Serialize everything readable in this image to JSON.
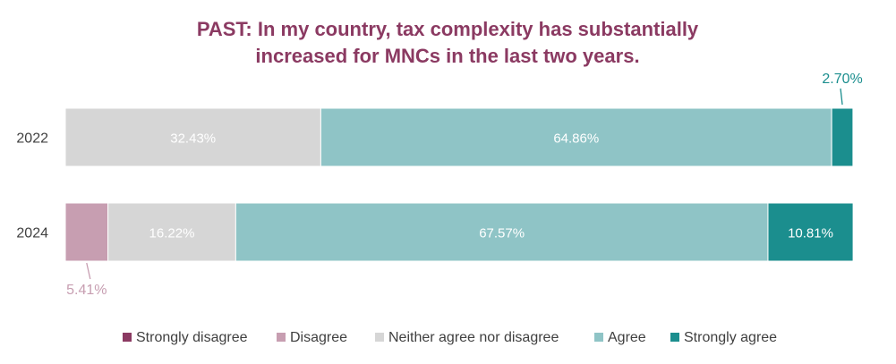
{
  "chart_data": {
    "type": "bar",
    "orientation": "horizontal",
    "stacked": true,
    "title": "PAST: In my country, tax complexity has substantially increased for MNCs in the last two years.",
    "title_lines": [
      "PAST: In my country, tax complexity has substantially",
      "increased for MNCs in the last two years."
    ],
    "categories": [
      "2022",
      "2024"
    ],
    "series": [
      {
        "name": "Strongly disagree",
        "color": "#8b3a62",
        "values": [
          0,
          0
        ],
        "labels": [
          "",
          ""
        ]
      },
      {
        "name": "Disagree",
        "color": "#c79eb1",
        "values": [
          0,
          5.41
        ],
        "labels": [
          "",
          "5.41%"
        ]
      },
      {
        "name": "Neither agree nor disagree",
        "color": "#d6d6d6",
        "values": [
          32.43,
          16.22
        ],
        "labels": [
          "32.43%",
          "16.22%"
        ]
      },
      {
        "name": "Agree",
        "color": "#8fc4c6",
        "values": [
          64.86,
          67.57
        ],
        "labels": [
          "64.86%",
          "67.57%"
        ]
      },
      {
        "name": "Strongly agree",
        "color": "#1b8e8e",
        "values": [
          2.7,
          10.81
        ],
        "labels": [
          "2.70%",
          "10.81%"
        ]
      }
    ],
    "xlim": [
      0,
      100
    ],
    "grid": false,
    "legend_position": "bottom"
  }
}
